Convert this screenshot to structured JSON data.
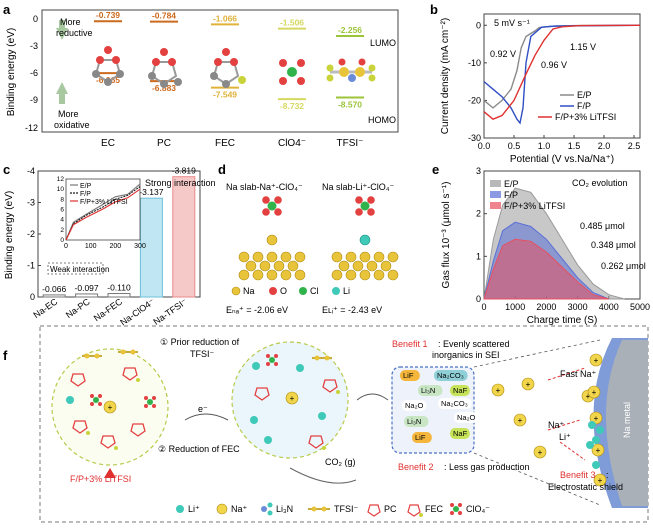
{
  "panels": {
    "a": "a",
    "b": "b",
    "c": "c",
    "d": "d",
    "e": "e",
    "f": "f"
  },
  "panel_a": {
    "ylabel": "Binding energy (eV)",
    "y_ticks": [
      "0",
      "-3",
      "-6",
      "-9",
      "-12"
    ],
    "more_reductive": [
      "More",
      "reductive"
    ],
    "more_oxidative": [
      "More",
      "oxidative"
    ],
    "lumo": "LUMO",
    "homo": "HOMO",
    "species": [
      "EC",
      "PC",
      "FEC",
      "ClO4⁻",
      "TFSI⁻"
    ],
    "lumo_values": [
      "-0.739",
      "-0.784",
      "-1.066",
      "-1.506",
      "-2.256"
    ],
    "homo_values": [
      "-6.065",
      "-6.883",
      "-7.549",
      "-8.732",
      "-8.570"
    ],
    "colors": [
      "#cc6a1e",
      "#cc6a1e",
      "#e0b23a",
      "#d6d860",
      "#9cc43a"
    ]
  },
  "chart_data": [
    {
      "type": "line",
      "title": "LSV",
      "xlabel": "Potential (V vs.Na/Na⁺)",
      "ylabel": "Current density (mA cm⁻²)",
      "xlim": [
        0.0,
        2.6
      ],
      "ylim": [
        -30,
        3
      ],
      "x_ticks": [
        "0.0",
        "0.5",
        "1.0",
        "1.5",
        "2.0",
        "2.5"
      ],
      "y_ticks": [
        "0",
        "-10",
        "-20",
        "-30"
      ],
      "scan_rate": "5 mV s⁻¹",
      "annotations": [
        "0.92 V",
        "0.96 V",
        "1.15 V"
      ],
      "series": [
        {
          "name": "E/P",
          "color": "#8a8a8a",
          "points": [
            [
              0.0,
              -20
            ],
            [
              0.15,
              -22
            ],
            [
              0.3,
              -20
            ],
            [
              0.45,
              -17
            ],
            [
              0.55,
              -12
            ],
            [
              0.62,
              -6
            ],
            [
              0.7,
              -3
            ],
            [
              0.85,
              -1.5
            ],
            [
              0.92,
              -0.6
            ],
            [
              1.1,
              -0.3
            ],
            [
              1.5,
              -0.1
            ],
            [
              2.6,
              0
            ]
          ]
        },
        {
          "name": "F/P",
          "color": "#2f4fc4",
          "points": [
            [
              0.0,
              -15
            ],
            [
              0.15,
              -17
            ],
            [
              0.3,
              -19
            ],
            [
              0.45,
              -22
            ],
            [
              0.55,
              -25
            ],
            [
              0.6,
              -26
            ],
            [
              0.65,
              -22
            ],
            [
              0.7,
              -10
            ],
            [
              0.78,
              -3
            ],
            [
              0.96,
              -0.5
            ],
            [
              1.2,
              -0.2
            ],
            [
              2.6,
              0
            ]
          ]
        },
        {
          "name": "F/P+3% LiTFSI",
          "color": "#e03030",
          "points": [
            [
              0.0,
              -23
            ],
            [
              0.15,
              -25
            ],
            [
              0.3,
              -24
            ],
            [
              0.5,
              -20
            ],
            [
              0.7,
              -13
            ],
            [
              0.85,
              -8
            ],
            [
              1.0,
              -4
            ],
            [
              1.15,
              -1
            ],
            [
              1.3,
              -0.4
            ],
            [
              1.6,
              -0.1
            ],
            [
              2.6,
              0
            ]
          ]
        }
      ]
    },
    {
      "type": "bar",
      "title": "Strong interaction / Weak interaction",
      "ylabel": "Binding energy (eV)",
      "ylim": [
        0,
        -4
      ],
      "y_ticks": [
        "0",
        "-1",
        "-2",
        "-3",
        "-4"
      ],
      "categories": [
        "Na-EC",
        "Na-PC",
        "Na-FEC",
        "Na-ClO4⁻",
        "Na-TFSI⁻"
      ],
      "values": [
        -0.066,
        -0.097,
        -0.11,
        -3.137,
        -3.819
      ],
      "value_labels": [
        "-0.066",
        "-0.097",
        "-0.110",
        "-3.137",
        "-3.819"
      ],
      "bar_colors": [
        "#ffffff",
        "#ffffff",
        "#ffffff",
        "#bfe6f2",
        "#f6c9c9"
      ],
      "bar_edges": [
        "#777777",
        "#777777",
        "#777777",
        "#6cc1dc",
        "#e98a8a"
      ],
      "legend": [
        "E/P",
        "F/P",
        "F/P+3% LiTFSI"
      ],
      "label_strong": "Strong interaction",
      "label_weak": "Weak interaction",
      "inset": {
        "xlim": [
          0,
          300
        ],
        "ylim": [
          0,
          12
        ],
        "x_ticks": [
          "0",
          "100",
          "200",
          "300"
        ],
        "y_ticks": [
          "0",
          "2",
          "4",
          "6",
          "8",
          "10",
          "12"
        ],
        "series": [
          {
            "name": "E/P",
            "color": "#777777",
            "points": [
              [
                0,
                0
              ],
              [
                30,
                3.5
              ],
              [
                80,
                5
              ],
              [
                150,
                7
              ],
              [
                200,
                8.5
              ],
              [
                250,
                9
              ],
              [
                300,
                11
              ]
            ]
          },
          {
            "name": "F/P",
            "color": "#1a1a1a",
            "points": [
              [
                0,
                0
              ],
              [
                30,
                3.2
              ],
              [
                80,
                4.8
              ],
              [
                150,
                6.5
              ],
              [
                200,
                8
              ],
              [
                250,
                8.8
              ],
              [
                300,
                10.5
              ]
            ]
          },
          {
            "name": "F/P+3% LiTFSI",
            "color": "#e03030",
            "points": [
              [
                0,
                0
              ],
              [
                30,
                3
              ],
              [
                80,
                4.4
              ],
              [
                150,
                6.1
              ],
              [
                200,
                7.5
              ],
              [
                250,
                8.3
              ],
              [
                300,
                10
              ]
            ]
          }
        ]
      }
    },
    {
      "type": "area",
      "title": "CO₂ evolution",
      "xlabel": "Charge time (S)",
      "ylabel": "Gas flux 10⁻³ (μmol s⁻¹)",
      "xlim": [
        0,
        5000
      ],
      "ylim": [
        0,
        3
      ],
      "x_ticks": [
        "0",
        "1000",
        "2000",
        "3000",
        "4000",
        "5000"
      ],
      "y_ticks": [
        "0",
        "1",
        "2",
        "3"
      ],
      "series": [
        {
          "name": "E/P",
          "color": "#9a9a9a",
          "total": "0.485 μmol",
          "points": [
            [
              0,
              0
            ],
            [
              300,
              1.4
            ],
            [
              600,
              2.2
            ],
            [
              1000,
              2.6
            ],
            [
              1500,
              2.5
            ],
            [
              2000,
              2.0
            ],
            [
              2500,
              1.4
            ],
            [
              3000,
              0.8
            ],
            [
              3500,
              0.35
            ],
            [
              4000,
              0.1
            ],
            [
              4500,
              0
            ]
          ]
        },
        {
          "name": "F/P",
          "color": "#5a6fd6",
          "total": "0.348 μmol",
          "points": [
            [
              0,
              0
            ],
            [
              300,
              0.9
            ],
            [
              600,
              1.6
            ],
            [
              1000,
              1.8
            ],
            [
              1500,
              1.7
            ],
            [
              2000,
              1.4
            ],
            [
              2500,
              0.95
            ],
            [
              3000,
              0.5
            ],
            [
              3500,
              0.15
            ],
            [
              4000,
              0
            ]
          ]
        },
        {
          "name": "F/P+3% LiTFSI",
          "color": "#e85060",
          "total": "0.262 μmol",
          "points": [
            [
              0,
              0
            ],
            [
              300,
              0.7
            ],
            [
              600,
              1.25
            ],
            [
              1000,
              1.4
            ],
            [
              1500,
              1.35
            ],
            [
              2000,
              1.1
            ],
            [
              2500,
              0.75
            ],
            [
              3000,
              0.4
            ],
            [
              3500,
              0.1
            ],
            [
              4000,
              0
            ]
          ]
        }
      ]
    }
  ],
  "panel_d": {
    "title_left": "Na slab-Na⁺-ClO₄⁻",
    "title_right": "Na slab-Li⁺-ClO₄⁻",
    "legend": [
      "Na",
      "O",
      "Cl",
      "Li"
    ],
    "energy_left": "Eₙₐ⁺ = -2.06 eV",
    "energy_right": "Eʟᵢ⁺ = -2.43 eV"
  },
  "panel_f": {
    "step1": "①  Prior reduction of",
    "step1b": "TFSI⁻",
    "step2": "② Reduction of FEC",
    "electrolyte": "F/P+3% LiTFSI",
    "electron": "e⁻",
    "co2": "CO₂ (g)",
    "benefit1_title": "Benefit 1",
    "benefit1_text": ": Evenly scattered",
    "benefit1_text2": "inorganics in SEI",
    "benefit2_title": "Benefit 2",
    "benefit2_text": ": Less gas production",
    "benefit3_title": "Benefit 3",
    "benefit3_text": ":",
    "benefit3_text2": "Electrostatic shield",
    "fast_na": "Fast Na⁺",
    "na_plus": "Na⁺",
    "li_plus": "Li⁺",
    "na_metal": "Na metal",
    "sei_labels": [
      "LiF",
      "Na₂CO₃",
      "Li₃N",
      "NaF",
      "Na₂O",
      "Na₂CO₃",
      "Na₂O",
      "Li₃N",
      "LiF",
      "NaF"
    ],
    "legend": [
      "Li⁺",
      "Na⁺",
      "Li₃N",
      "TFSI⁻",
      "PC",
      "FEC",
      "ClO₄⁻"
    ]
  }
}
